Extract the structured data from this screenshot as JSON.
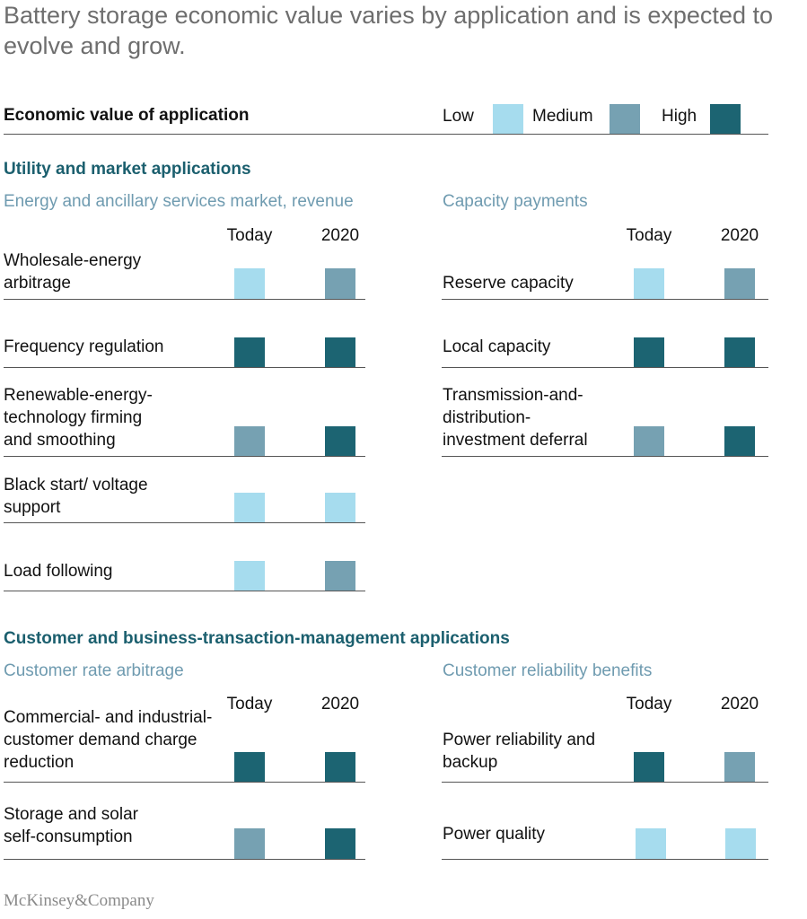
{
  "title": "Battery storage economic value varies by application and is expected to evolve and grow.",
  "header": {
    "label": "Economic value of application"
  },
  "levels": {
    "low": {
      "label": "Low",
      "color": "#a6dcee"
    },
    "medium": {
      "label": "Medium",
      "color": "#76a1b2"
    },
    "high": {
      "label": "High",
      "color": "#1c6472"
    }
  },
  "column_headers": {
    "today": "Today",
    "year": "2020"
  },
  "sections": {
    "utility": {
      "title": "Utility and market applications",
      "energy": {
        "title": "Energy and ancillary services market, revenue",
        "rows": [
          {
            "label": "Wholesale-energy arbitrage",
            "today": "low",
            "y2020": "medium"
          },
          {
            "label": "Frequency regulation",
            "today": "high",
            "y2020": "high"
          },
          {
            "label": "Renewable-energy-technology firming and smoothing",
            "today": "medium",
            "y2020": "high"
          },
          {
            "label": "Black start/ voltage support",
            "today": "low",
            "y2020": "low"
          },
          {
            "label": "Load following",
            "today": "low",
            "y2020": "medium"
          }
        ]
      },
      "capacity": {
        "title": "Capacity payments",
        "rows": [
          {
            "label": "Reserve capacity",
            "today": "low",
            "y2020": "medium"
          },
          {
            "label": "Local capacity",
            "today": "high",
            "y2020": "high"
          },
          {
            "label": "Transmission-and-distribution-investment deferral",
            "today": "medium",
            "y2020": "high"
          }
        ]
      }
    },
    "customer": {
      "title": "Customer and business-transaction-management applications",
      "rate": {
        "title": "Customer rate arbitrage",
        "rows": [
          {
            "label": "Commercial- and industrial-customer demand charge reduction",
            "today": "high",
            "y2020": "high"
          },
          {
            "label": "Storage and solar self-consumption",
            "today": "medium",
            "y2020": "high"
          }
        ]
      },
      "reliability": {
        "title": "Customer reliability benefits",
        "rows": [
          {
            "label": "Power reliability and backup",
            "today": "high",
            "y2020": "medium"
          },
          {
            "label": "Power quality",
            "today": "low",
            "y2020": "low"
          }
        ]
      }
    }
  },
  "chart_data": {
    "type": "table",
    "columns": [
      "Today",
      "2020"
    ],
    "groups": [
      {
        "section": "Utility and market applications",
        "name": "Energy and ancillary services market, revenue",
        "rows": [
          {
            "label": "Wholesale-energy arbitrage",
            "values": [
              "Low",
              "Medium"
            ]
          },
          {
            "label": "Frequency regulation",
            "values": [
              "High",
              "High"
            ]
          },
          {
            "label": "Renewable-energy-technology firming and smoothing",
            "values": [
              "Medium",
              "High"
            ]
          },
          {
            "label": "Black start/ voltage support",
            "values": [
              "Low",
              "Low"
            ]
          },
          {
            "label": "Load following",
            "values": [
              "Low",
              "Medium"
            ]
          }
        ]
      },
      {
        "section": "Utility and market applications",
        "name": "Capacity payments",
        "rows": [
          {
            "label": "Reserve capacity",
            "values": [
              "Low",
              "Medium"
            ]
          },
          {
            "label": "Local capacity",
            "values": [
              "High",
              "High"
            ]
          },
          {
            "label": "Transmission-and-distribution-investment deferral",
            "values": [
              "Medium",
              "High"
            ]
          }
        ]
      },
      {
        "section": "Customer and business-transaction-management applications",
        "name": "Customer rate arbitrage",
        "rows": [
          {
            "label": "Commercial- and industrial-customer demand charge reduction",
            "values": [
              "High",
              "High"
            ]
          },
          {
            "label": "Storage and solar self-consumption",
            "values": [
              "Medium",
              "High"
            ]
          }
        ]
      },
      {
        "section": "Customer and business-transaction-management applications",
        "name": "Customer reliability benefits",
        "rows": [
          {
            "label": "Power reliability and backup",
            "values": [
              "High",
              "Medium"
            ]
          },
          {
            "label": "Power quality",
            "values": [
              "Low",
              "Low"
            ]
          }
        ]
      }
    ],
    "legend": [
      "Low",
      "Medium",
      "High"
    ]
  },
  "footer": {
    "brand": "McKinsey&Company"
  }
}
